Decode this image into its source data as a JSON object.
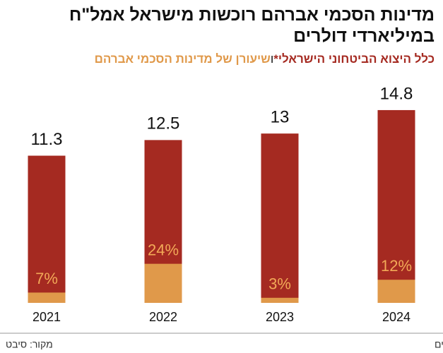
{
  "chart_data": {
    "type": "bar",
    "title": "מדינות הסכמי אברהם רוכשות מישראל אמל\"ח",
    "subtitle": "במיליארדי דולרים",
    "legend_connector": "ו",
    "footnote": "*במיליארדי דולרים",
    "source": "מקור: סיבט",
    "categories": [
      "2021",
      "2022",
      "2023",
      "2024"
    ],
    "series": [
      {
        "name": "כלל היצוא הביטחוני הישראלי*",
        "color": "#a52a21",
        "values": [
          11.3,
          12.5,
          13,
          14.8
        ]
      },
      {
        "name": "שיעורן של מדינות הסכמי אברהם",
        "color": "#e0994a",
        "values": [
          7,
          24,
          3,
          12
        ],
        "value_labels": [
          "7%",
          "24%",
          "3%",
          "12%"
        ]
      }
    ]
  }
}
